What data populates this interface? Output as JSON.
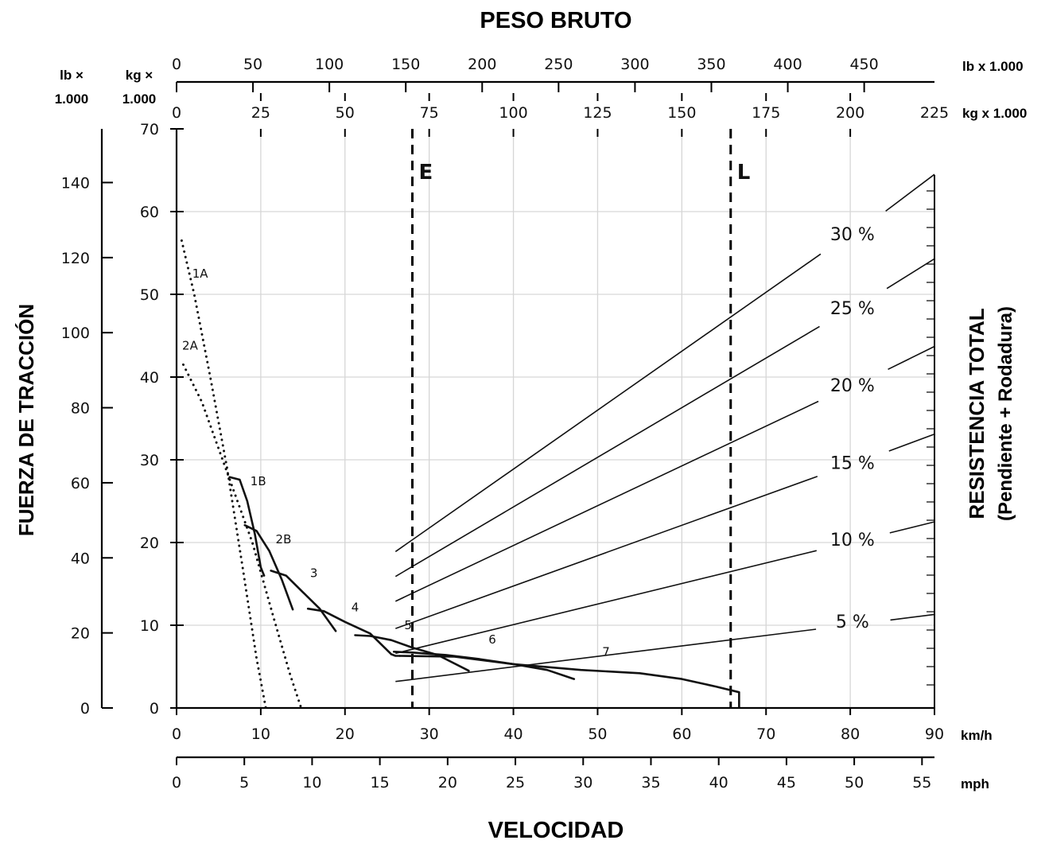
{
  "chart_data": {
    "type": "line",
    "title": "PESO BRUTO",
    "xlabel": "VELOCIDAD",
    "ylabel": "FUERZA DE TRACCIÓN",
    "right_label_1": "RESISTENCIA TOTAL",
    "right_label_2": "(Pendiente + Rodadura)",
    "axes": {
      "kmh": {
        "unit": "km/h",
        "ticks": [
          0,
          10,
          20,
          30,
          40,
          50,
          60,
          70,
          80,
          90
        ],
        "range": [
          0,
          90
        ]
      },
      "mph": {
        "unit": "mph",
        "ticks": [
          0,
          5,
          10,
          15,
          20,
          25,
          30,
          35,
          40,
          45,
          50,
          55
        ],
        "range": [
          0,
          55.92
        ]
      },
      "force_kg": {
        "unit_line1": "kg ×",
        "unit_line2": "1.000",
        "ticks": [
          0,
          10,
          20,
          30,
          40,
          50,
          60,
          70
        ],
        "range": [
          0,
          70
        ]
      },
      "force_lb": {
        "unit_line1": "lb ×",
        "unit_line2": "1.000",
        "ticks": [
          0,
          20,
          40,
          60,
          80,
          100,
          120,
          140
        ],
        "range": [
          0,
          154.3
        ]
      },
      "weight_lb": {
        "unit": "lb x 1.000",
        "ticks": [
          0,
          50,
          100,
          150,
          200,
          250,
          300,
          350,
          400,
          450
        ],
        "range": [
          0,
          496
        ]
      },
      "weight_kg": {
        "unit": "kg x 1.000",
        "ticks": [
          0,
          25,
          50,
          75,
          100,
          125,
          150,
          175,
          200,
          225
        ],
        "range": [
          0,
          225
        ]
      }
    },
    "markers": [
      {
        "label": "E",
        "weight_kg": 70
      },
      {
        "label": "L",
        "weight_kg": 164.5
      }
    ],
    "grade_lines": [
      {
        "label": "30 %",
        "grade": 30,
        "x": [
          26,
          90
        ],
        "y": [
          18.9,
          64.5
        ]
      },
      {
        "label": "25 %",
        "grade": 25,
        "x": [
          26,
          90
        ],
        "y": [
          15.9,
          54.3
        ]
      },
      {
        "label": "20 %",
        "grade": 20,
        "x": [
          26,
          90
        ],
        "y": [
          12.9,
          43.7
        ]
      },
      {
        "label": "15 %",
        "grade": 15,
        "x": [
          26,
          90
        ],
        "y": [
          9.6,
          33.1
        ]
      },
      {
        "label": "10 %",
        "grade": 10,
        "x": [
          26,
          90
        ],
        "y": [
          6.6,
          22.5
        ]
      },
      {
        "label": "5 %",
        "grade": 5,
        "x": [
          26,
          90
        ],
        "y": [
          3.2,
          11.3
        ]
      }
    ],
    "series": [
      {
        "name": "1A",
        "style": "dotted",
        "x": [
          0.6,
          2.1,
          4.0,
          6.0,
          8.0,
          9.5,
          10.6
        ],
        "y": [
          56.5,
          50.0,
          40.0,
          29.0,
          16.0,
          6.0,
          0
        ]
      },
      {
        "name": "2A",
        "style": "dotted",
        "x": [
          0.8,
          3.0,
          6.0,
          9.0,
          11.5,
          13.5,
          14.8
        ],
        "y": [
          41.5,
          37.0,
          28.5,
          20.0,
          11.0,
          4.0,
          0
        ]
      },
      {
        "name": "1B",
        "style": "solid",
        "x": [
          6.3,
          7.5,
          8.4,
          9.3,
          10.0,
          10.4
        ],
        "y": [
          27.9,
          27.6,
          25.0,
          21.0,
          17.0,
          16.0
        ]
      },
      {
        "name": "2B",
        "style": "solid",
        "x": [
          8.1,
          9.5,
          11.0,
          12.5,
          13.8
        ],
        "y": [
          22.1,
          21.4,
          19.0,
          15.5,
          11.9
        ]
      },
      {
        "name": "3",
        "style": "solid",
        "x": [
          11.2,
          13.0,
          15.0,
          17.0,
          18.9
        ],
        "y": [
          16.6,
          16.0,
          14.0,
          12.0,
          9.3
        ]
      },
      {
        "name": "4",
        "style": "solid",
        "x": [
          15.6,
          17.5,
          20.0,
          23.0,
          25.5
        ],
        "y": [
          12.0,
          11.7,
          10.4,
          9.0,
          6.5
        ]
      },
      {
        "name": "5",
        "style": "solid",
        "x": [
          21.2,
          23.0,
          25.5,
          28.0,
          31.0,
          34.7
        ],
        "y": [
          8.8,
          8.7,
          8.2,
          7.3,
          6.4,
          4.5
        ]
      },
      {
        "name": "6",
        "style": "solid",
        "x": [
          25.8,
          28.0,
          32.0,
          36.0,
          40.0,
          44.0,
          47.2
        ],
        "y": [
          6.8,
          6.7,
          6.4,
          5.9,
          5.3,
          4.6,
          3.5
        ]
      },
      {
        "name": "7",
        "style": "solid",
        "x": [
          26.5,
          33.0,
          40.0,
          48.0,
          55.0,
          60.0,
          64.0,
          66.8
        ],
        "y": [
          6.3,
          6.2,
          5.3,
          4.6,
          4.2,
          3.5,
          2.6,
          1.9
        ]
      },
      {
        "name": "",
        "style": "solid",
        "x": [
          25.5,
          26.0,
          26.5
        ],
        "y": [
          6.5,
          6.3,
          6.3
        ]
      }
    ]
  }
}
